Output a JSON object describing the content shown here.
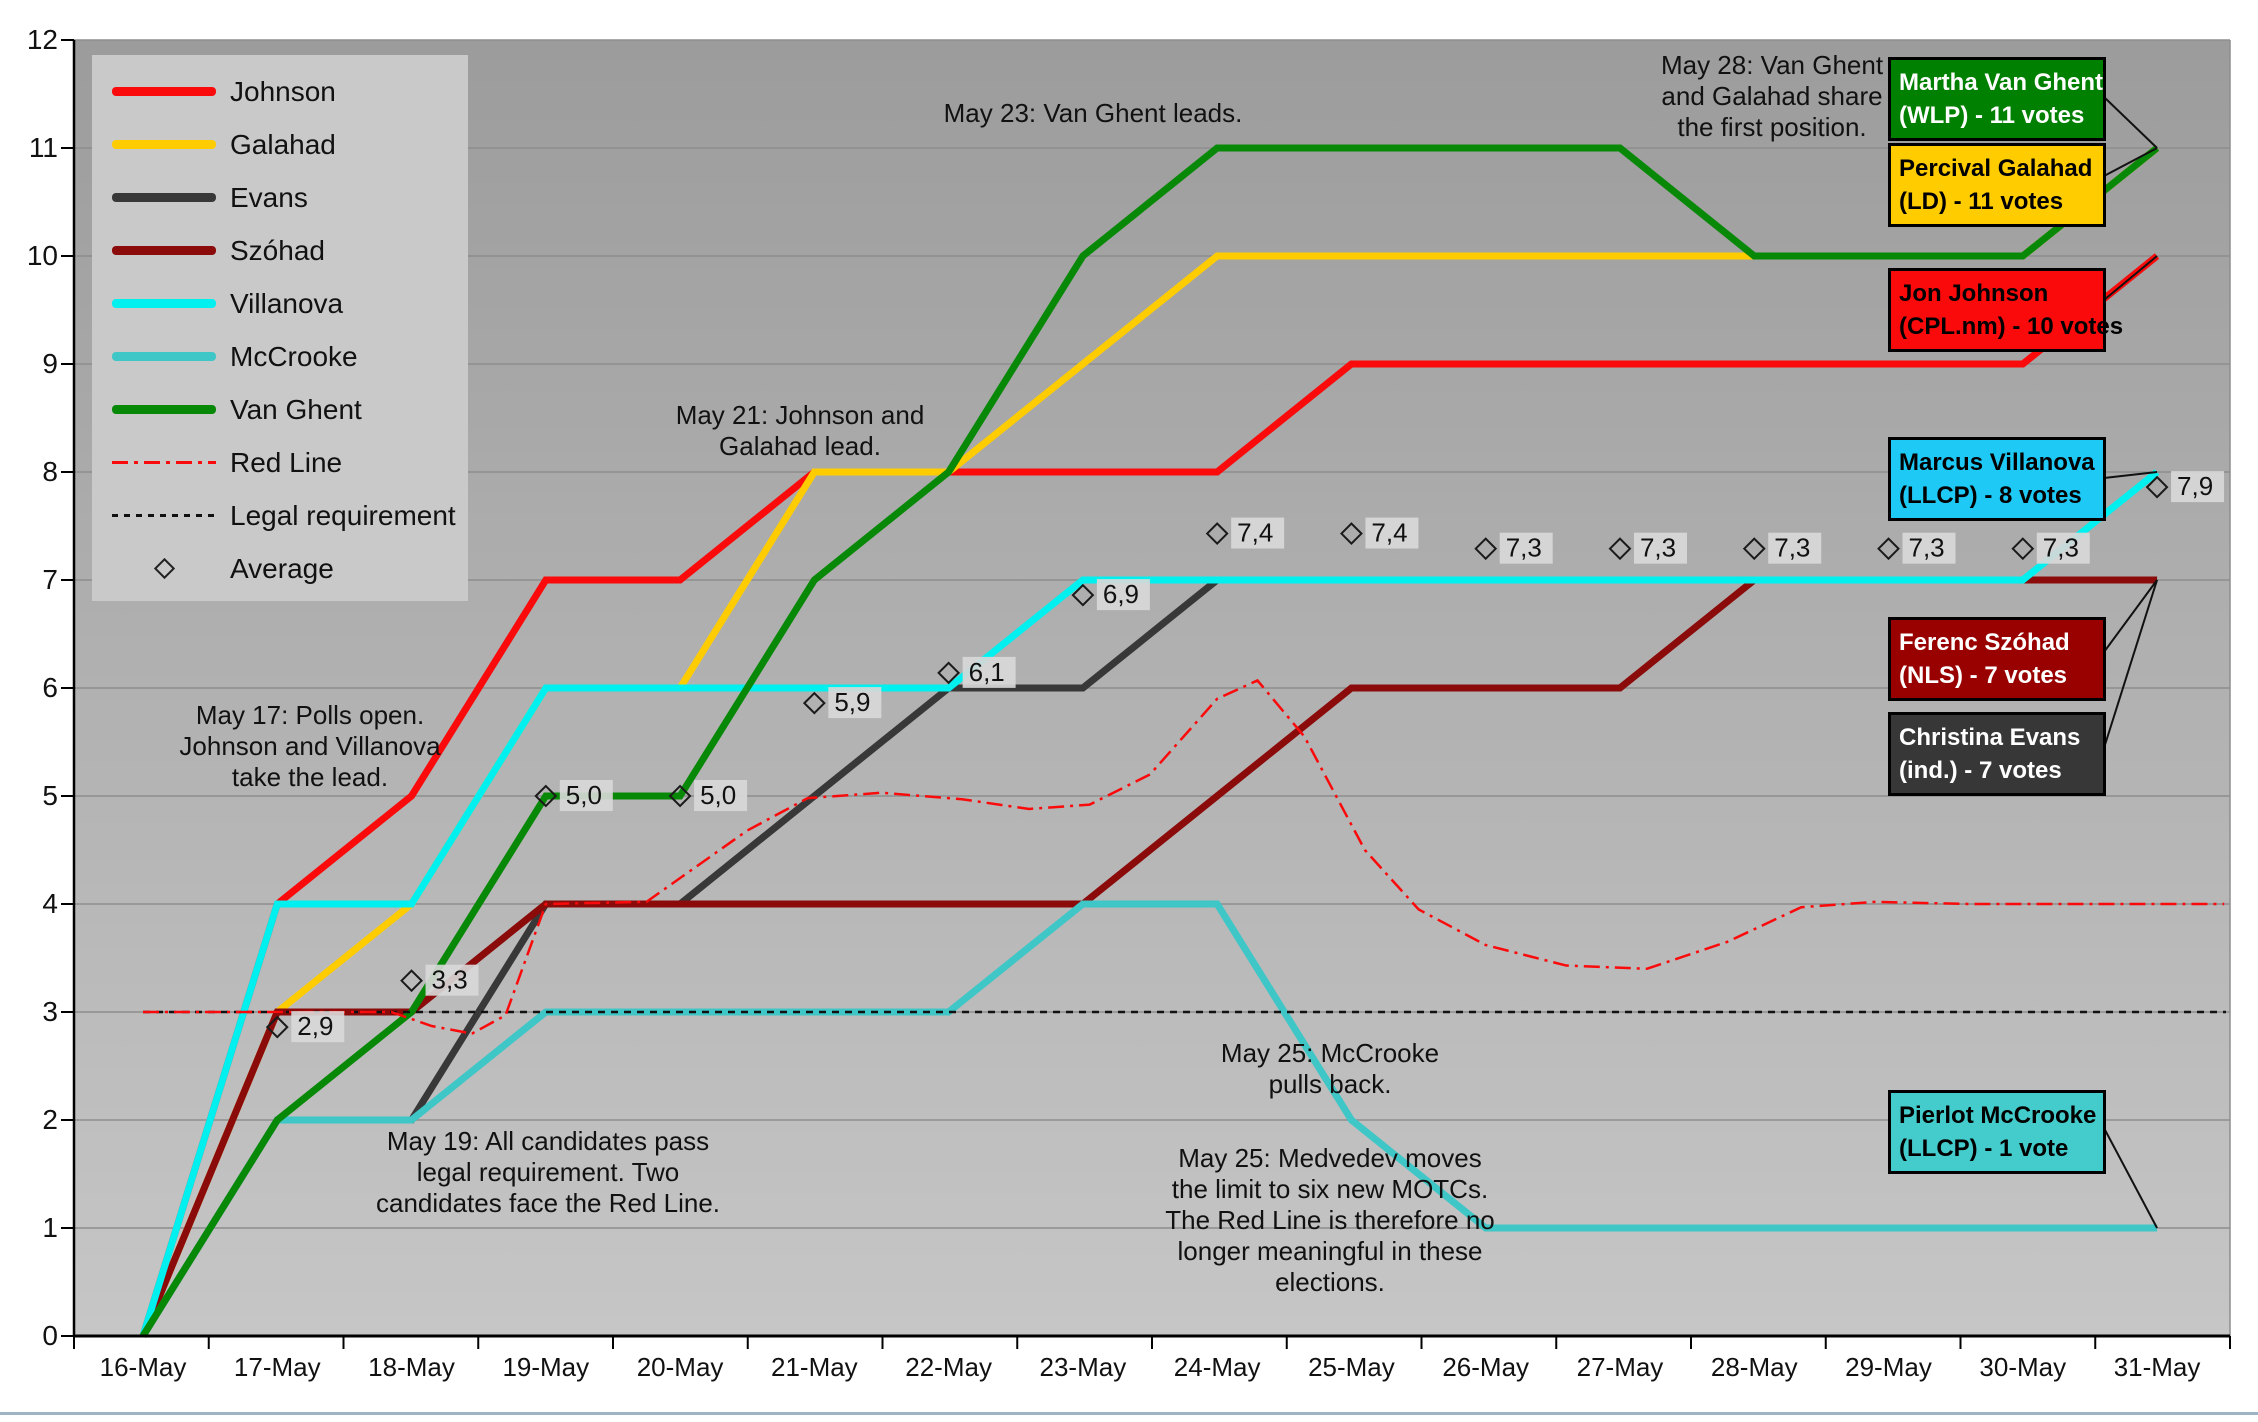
{
  "legend": {
    "items": [
      {
        "label": "Johnson",
        "kind": "solid",
        "color": "#fa0a0a"
      },
      {
        "label": "Galahad",
        "kind": "solid",
        "color": "#ffcc00"
      },
      {
        "label": "Evans",
        "kind": "solid",
        "color": "#383838"
      },
      {
        "label": "Szóhad",
        "kind": "solid",
        "color": "#8b0a0a"
      },
      {
        "label": "Villanova",
        "kind": "solid",
        "color": "#00f0f0"
      },
      {
        "label": "McCrooke",
        "kind": "solid",
        "color": "#3fc6c6"
      },
      {
        "label": "Van Ghent",
        "kind": "solid",
        "color": "#078807"
      },
      {
        "label": "Red Line",
        "kind": "dashdot",
        "color": "#fa0a0a"
      },
      {
        "label": "Legal requirement",
        "kind": "dotted",
        "color": "#111111"
      },
      {
        "label": "Average",
        "kind": "diamond",
        "color": "#222222"
      }
    ]
  },
  "chart_data": {
    "type": "line",
    "x_labels": [
      "16-May",
      "17-May",
      "18-May",
      "19-May",
      "20-May",
      "21-May",
      "22-May",
      "23-May",
      "24-May",
      "25-May",
      "26-May",
      "27-May",
      "28-May",
      "29-May",
      "30-May",
      "31-May"
    ],
    "y_ticks": [
      "0",
      "1",
      "2",
      "3",
      "4",
      "5",
      "6",
      "7",
      "8",
      "9",
      "10",
      "11",
      "12"
    ],
    "ylim": [
      0,
      12
    ],
    "grid": true,
    "legend_position": "top-left",
    "series": [
      {
        "name": "Johnson",
        "color": "#fa0a0a",
        "values": [
          0,
          4,
          5,
          7,
          7,
          8,
          8,
          8,
          8,
          9,
          9,
          9,
          9,
          9,
          9,
          10
        ]
      },
      {
        "name": "Galahad",
        "color": "#ffcc00",
        "values": [
          0,
          3,
          4,
          6,
          6,
          8,
          8,
          9,
          10,
          10,
          10,
          10,
          10,
          10,
          10,
          11
        ]
      },
      {
        "name": "Evans",
        "color": "#383838",
        "values": [
          0,
          2,
          2,
          4,
          4,
          5,
          6,
          6,
          7,
          7,
          7,
          7,
          7,
          7,
          7,
          7
        ]
      },
      {
        "name": "Szóhad",
        "color": "#8b0a0a",
        "values": [
          0,
          3,
          3,
          4,
          4,
          4,
          4,
          4,
          5,
          6,
          6,
          6,
          7,
          7,
          7,
          7
        ]
      },
      {
        "name": "Villanova",
        "color": "#00f0f0",
        "values": [
          0,
          4,
          4,
          6,
          6,
          6,
          6,
          7,
          7,
          7,
          7,
          7,
          7,
          7,
          7,
          8
        ]
      },
      {
        "name": "McCrooke",
        "color": "#3fc6c6",
        "values": [
          0,
          2,
          2,
          3,
          3,
          3,
          3,
          4,
          4,
          2,
          1,
          1,
          1,
          1,
          1,
          1
        ]
      },
      {
        "name": "Van Ghent",
        "color": "#078807",
        "values": [
          0,
          2,
          3,
          5,
          5,
          7,
          8,
          10,
          11,
          11,
          11,
          11,
          10,
          10,
          10,
          11
        ]
      }
    ],
    "reference_lines": [
      {
        "name": "Red Line",
        "style": "dash-dot",
        "color": "#fa0a0a",
        "points": [
          [
            0,
            3
          ],
          [
            1,
            3
          ],
          [
            1.85,
            3
          ],
          [
            2.15,
            2.87
          ],
          [
            2.45,
            2.8
          ],
          [
            2.7,
            2.97
          ],
          [
            3,
            4
          ],
          [
            3.75,
            4.02
          ],
          [
            4.5,
            4.68
          ],
          [
            4.95,
            4.98
          ],
          [
            5.5,
            5.03
          ],
          [
            6.1,
            4.97
          ],
          [
            6.6,
            4.88
          ],
          [
            7.05,
            4.92
          ],
          [
            7.5,
            5.2
          ],
          [
            8,
            5.9
          ],
          [
            8.3,
            6.07
          ],
          [
            8.65,
            5.55
          ],
          [
            9.1,
            4.5
          ],
          [
            9.5,
            3.95
          ],
          [
            10,
            3.62
          ],
          [
            10.6,
            3.43
          ],
          [
            11.2,
            3.4
          ],
          [
            11.8,
            3.65
          ],
          [
            12.35,
            3.97
          ],
          [
            12.9,
            4.02
          ],
          [
            13.6,
            4
          ],
          [
            15.5,
            4
          ]
        ]
      },
      {
        "name": "Legal requirement",
        "style": "dotted",
        "color": "#111111",
        "value": 3
      }
    ],
    "average_markers": [
      {
        "x_index": 1,
        "value": 2.86,
        "label": "2,9"
      },
      {
        "x_index": 2,
        "value": 3.29,
        "label": "3,3"
      },
      {
        "x_index": 3,
        "value": 5.0,
        "label": "5,0"
      },
      {
        "x_index": 4,
        "value": 5.0,
        "label": "5,0"
      },
      {
        "x_index": 5,
        "value": 5.86,
        "label": "5,9"
      },
      {
        "x_index": 6,
        "value": 6.14,
        "label": "6,1"
      },
      {
        "x_index": 7,
        "value": 6.86,
        "label": "6,9"
      },
      {
        "x_index": 8,
        "value": 7.43,
        "label": "7,4"
      },
      {
        "x_index": 9,
        "value": 7.43,
        "label": "7,4"
      },
      {
        "x_index": 10,
        "value": 7.29,
        "label": "7,3"
      },
      {
        "x_index": 11,
        "value": 7.29,
        "label": "7,3"
      },
      {
        "x_index": 12,
        "value": 7.29,
        "label": "7,3"
      },
      {
        "x_index": 13,
        "value": 7.29,
        "label": "7,3"
      },
      {
        "x_index": 14,
        "value": 7.29,
        "label": "7,3"
      },
      {
        "x_index": 15,
        "value": 7.86,
        "label": "7,9"
      }
    ]
  },
  "annotations": [
    {
      "id": "may17",
      "text": "May 17: Polls open.\nJohnson and Villanova\ntake the lead."
    },
    {
      "id": "may19",
      "text": "May 19: All candidates pass\nlegal requirement. Two\ncandidates face the Red Line."
    },
    {
      "id": "may21",
      "text": "May 21: Johnson and\nGalahad lead."
    },
    {
      "id": "may23",
      "text": "May 23: Van Ghent leads."
    },
    {
      "id": "may25a",
      "text": "May 25: McCrooke\npulls back."
    },
    {
      "id": "may25b",
      "text": "May 25: Medvedev moves\nthe limit to six new MOTCs.\nThe Red Line is therefore no\nlonger meaningful in these\nelections."
    },
    {
      "id": "may28",
      "text": "May 28: Van Ghent\nand Galahad share\nthe first position."
    }
  ],
  "value_boxes": [
    {
      "id": "vanghent",
      "text": "Martha Van Ghent\n(WLP) - 11 votes",
      "bg": "#008000",
      "fg": "#ffffff"
    },
    {
      "id": "galahad",
      "text": "Percival Galahad\n(LD) - 11 votes",
      "bg": "#ffcc00",
      "fg": "#000000"
    },
    {
      "id": "johnson",
      "text": "Jon Johnson\n(CPL.nm) - 10 votes",
      "bg": "#fa0a0a",
      "fg": "#000000"
    },
    {
      "id": "villanova",
      "text": "Marcus Villanova\n(LLCP) - 8 votes",
      "bg": "#1ec9f5",
      "fg": "#000000"
    },
    {
      "id": "szohad",
      "text": "Ferenc Szóhad\n(NLS) - 7 votes",
      "bg": "#990000",
      "fg": "#ffffff"
    },
    {
      "id": "evans",
      "text": "Christina Evans\n(ind.) - 7 votes",
      "bg": "#373737",
      "fg": "#ffffff"
    },
    {
      "id": "mccrooke",
      "text": "Pierlot McCrooke\n(LLCP) - 1 vote",
      "bg": "#44cccc",
      "fg": "#000000"
    }
  ]
}
